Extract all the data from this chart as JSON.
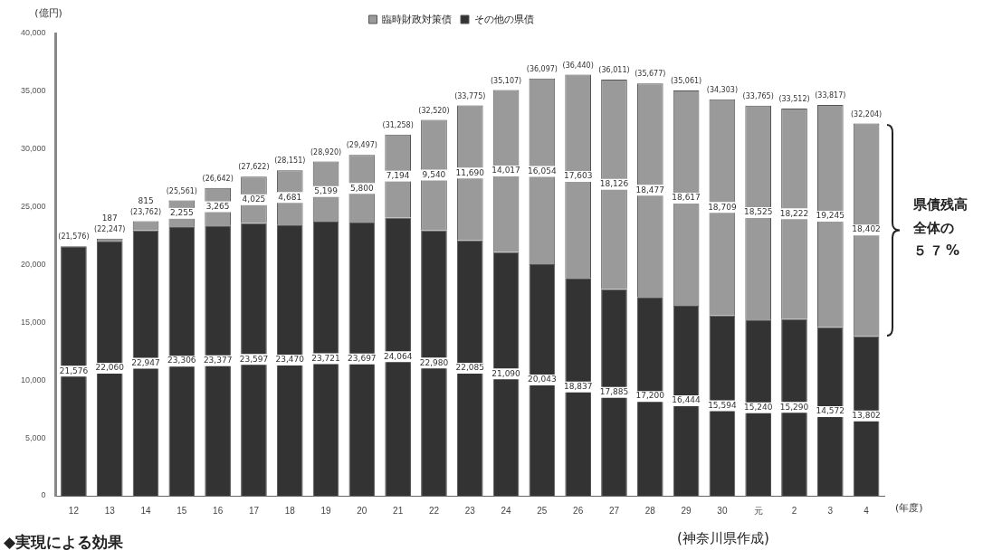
{
  "chart_data": {
    "type": "bar",
    "stacked": true,
    "ylabel": "(億円)",
    "xlabel": "(年度)",
    "categories": [
      "12",
      "13",
      "14",
      "15",
      "16",
      "17",
      "18",
      "19",
      "20",
      "21",
      "22",
      "23",
      "24",
      "25",
      "26",
      "27",
      "28",
      "29",
      "30",
      "元",
      "2",
      "3",
      "4"
    ],
    "series": [
      {
        "name": "その他の県債",
        "color": "#333333",
        "values": [
          21576,
          22060,
          22947,
          23306,
          23377,
          23597,
          23470,
          23721,
          23697,
          24064,
          22980,
          22085,
          21090,
          20043,
          18837,
          17885,
          17200,
          16444,
          15594,
          15240,
          15290,
          14572,
          13802
        ],
        "value_labels": [
          "21,576",
          "22,060",
          "22,947",
          "23,306",
          "23,377",
          "23,597",
          "23,470",
          "23,721",
          "23,697",
          "24,064",
          "22,980",
          "22,085",
          "21,090",
          "20,043",
          "18,837",
          "17,885",
          "17,200",
          "16,444",
          "15,594",
          "15,240",
          "15,290",
          "14,572",
          "13,802"
        ]
      },
      {
        "name": "臨時財政対策債",
        "color": "#9a9a9a",
        "values": [
          null,
          187,
          815,
          2255,
          3265,
          4025,
          4681,
          5199,
          5800,
          7194,
          9540,
          11690,
          14017,
          16054,
          17603,
          18126,
          18477,
          18617,
          18709,
          18525,
          18222,
          19245,
          18402
        ],
        "value_labels": [
          null,
          "187",
          "815",
          "2,255",
          "3,265",
          "4,025",
          "4,681",
          "5,199",
          "5,800",
          "7,194",
          "9,540",
          "11,690",
          "14,017",
          "16,054",
          "17,603",
          "18,126",
          "18,477",
          "18,617",
          "18,709",
          "18,525",
          "18,222",
          "19,245",
          "18,402"
        ]
      }
    ],
    "totals": [
      "(21,576)",
      "(22,247)",
      "(23,762)",
      "(25,561)",
      "(26,642)",
      "(27,622)",
      "(28,151)",
      "(28,920)",
      "(29,497)",
      "(31,258)",
      "(32,520)",
      "(33,775)",
      "(35,107)",
      "(36,097)",
      "(36,440)",
      "(36,011)",
      "(35,677)",
      "(35,061)",
      "(34,303)",
      "(33,765)",
      "(33,512)",
      "(33,817)",
      "(32,204)"
    ],
    "ylim": [
      0,
      40000
    ],
    "yticks": [
      0,
      {
        "value": 5000,
        "label": "5,000"
      },
      {
        "value": 10000,
        "label": "10,000"
      },
      {
        "value": 15000,
        "label": "15,000"
      },
      {
        "value": 20000,
        "label": "20,000"
      },
      {
        "value": 25000,
        "label": "25,000"
      },
      {
        "value": 30000,
        "label": "30,000"
      },
      {
        "value": 35000,
        "label": "35,000"
      },
      {
        "value": 40000,
        "label": "40,000"
      }
    ],
    "grid": false,
    "legend": "top",
    "annotations": [
      "県債残高全体の５７%",
      "(神奈川県作成)",
      "◆実現による効果"
    ]
  }
}
